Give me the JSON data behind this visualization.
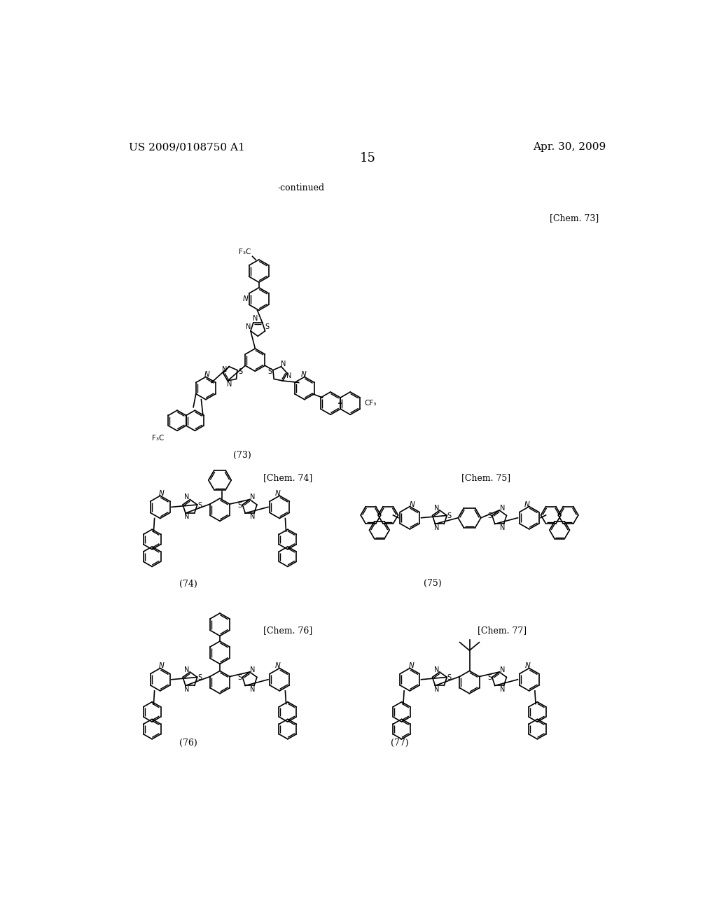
{
  "page_number": "15",
  "left_header": "US 2009/0108750 A1",
  "right_header": "Apr. 30, 2009",
  "continued_text": "-continued",
  "background_color": "#ffffff",
  "text_color": "#000000",
  "labels": {
    "chem73": "[Chem. 73]",
    "chem74": "[Chem. 74]",
    "chem75": "[Chem. 75]",
    "chem76": "[Chem. 76]",
    "chem77": "[Chem. 77]"
  },
  "compound_numbers": {
    "73": "(73)",
    "74": "(74)",
    "75": "(75)",
    "76": "(76)",
    "77": "(77)"
  },
  "font_size_header": 11,
  "font_size_page": 13,
  "font_size_label": 9,
  "font_size_compound": 9,
  "font_size_atom": 7
}
